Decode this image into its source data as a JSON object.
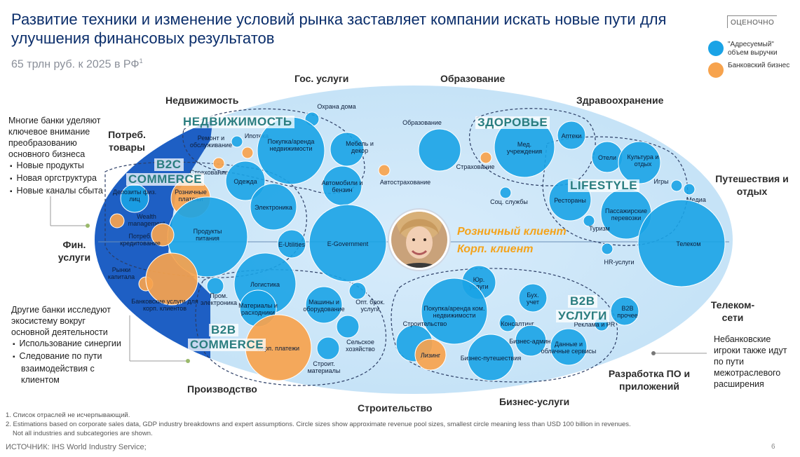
{
  "header": {
    "title": "Развитие техники и изменение условий рынка заставляет компании искать новые пути для улучшения финансовых результатов",
    "subtitle": "65 трлн руб. к 2025 в РФ",
    "subtitle_sup": "1",
    "estimate_label": "ОЦЕНОЧНО"
  },
  "legend": {
    "addressable": "\"Адресуемый\" объем выручки",
    "banking": "Банковский бизнес",
    "colors": {
      "addressable": "#1aa3e6",
      "banking": "#f7a34d"
    }
  },
  "sectors": {
    "gov": "Гос. услуги",
    "education": "Образование",
    "realty": "Недвижимость",
    "health": "Здравоохранение",
    "consumer": "Потреб. товары",
    "travel": "Путешествия и отдых",
    "finance": "Фин. услуги",
    "telecom": "Телеком-сети",
    "manufacturing": "Производство",
    "construction": "Строительство",
    "business": "Бизнес-услуги",
    "software": "Разработка ПО и приложений"
  },
  "side_notes": {
    "top_intro": "Многие банки уделяют ключевое внимание преобразованию основного бизнеса",
    "top_items": [
      "Новые продукты",
      "Новая оргструктура",
      "Новые каналы сбыта"
    ],
    "bottom_intro": "Другие банки исследуют экосистему вокруг основной деятельности",
    "bottom_items": [
      "Использование синергии",
      "Следование по пути взаимодействия с клиентом"
    ],
    "right_note": "Небанковские игроки также идут по пути межотраслевого расширения"
  },
  "clusters": {
    "realty": "НЕДВИЖИМОСТЬ",
    "b2c_1": "B2C",
    "b2c_2": "COMMERCE",
    "health": "ЗДОРОВЬЕ",
    "lifestyle": "LIFESTYLE",
    "b2b_services_1": "B2B",
    "b2b_services_2": "УСЛУГИ",
    "b2b_commerce_1": "B2B",
    "b2b_commerce_2": "COMMERCE"
  },
  "center": {
    "retail_client": "Розничный клиент",
    "corp_client": "Корп. клиент"
  },
  "bubbles": [
    {
      "label": "Охрана дома",
      "kind": "addressable"
    },
    {
      "label": "Ипотека",
      "kind": "addressable"
    },
    {
      "label": "Ремонт и обслуживание",
      "kind": "banking"
    },
    {
      "label": "Покупка/аренда недвижимости",
      "kind": "addressable"
    },
    {
      "label": "Мебель и декор",
      "kind": "addressable"
    },
    {
      "label": "Страхование",
      "kind": "banking"
    },
    {
      "label": "Одежда",
      "kind": "addressable"
    },
    {
      "label": "Автомобили и бензин",
      "kind": "addressable"
    },
    {
      "label": "Автострахование",
      "kind": "banking"
    },
    {
      "label": "Электроника",
      "kind": "addressable"
    },
    {
      "label": "Депозиты физ. лиц",
      "kind": "addressable"
    },
    {
      "label": "Розничные платежи",
      "kind": "banking"
    },
    {
      "label": "Wealth management",
      "kind": "banking"
    },
    {
      "label": "Продукты питания",
      "kind": "addressable"
    },
    {
      "label": "Потреб. кредитование",
      "kind": "banking"
    },
    {
      "label": "E-Utilities",
      "kind": "addressable"
    },
    {
      "label": "E-Government",
      "kind": "addressable"
    },
    {
      "label": "Рынки капитала",
      "kind": "banking"
    },
    {
      "label": "Банковские услуги для корп. клиентов",
      "kind": "banking"
    },
    {
      "label": "Логистика",
      "kind": "addressable"
    },
    {
      "label": "Пром. электроника",
      "kind": "addressable"
    },
    {
      "label": "Материалы и расходники",
      "kind": "addressable"
    },
    {
      "label": "Машины и оборудование",
      "kind": "addressable"
    },
    {
      "label": "Опт. брок. услуги",
      "kind": "addressable"
    },
    {
      "label": "Сельское хозяйство",
      "kind": "addressable"
    },
    {
      "label": "Корп. платежи",
      "kind": "banking"
    },
    {
      "label": "Строит. материалы",
      "kind": "addressable"
    },
    {
      "label": "Образование",
      "kind": "addressable"
    },
    {
      "label": "Страхование",
      "kind": "banking"
    },
    {
      "label": "Мед. учреждения",
      "kind": "addressable"
    },
    {
      "label": "Аптеки",
      "kind": "addressable"
    },
    {
      "label": "Соц. службы",
      "kind": "addressable"
    },
    {
      "label": "Отели",
      "kind": "addressable"
    },
    {
      "label": "Культура и отдых",
      "kind": "addressable"
    },
    {
      "label": "Игры",
      "kind": "addressable"
    },
    {
      "label": "Рестораны",
      "kind": "addressable"
    },
    {
      "label": "Пассажирские перевозки",
      "kind": "addressable"
    },
    {
      "label": "Туризм",
      "kind": "addressable"
    },
    {
      "label": "Медиа",
      "kind": "addressable"
    },
    {
      "label": "Телеком",
      "kind": "addressable"
    },
    {
      "label": "HR-услуги",
      "kind": "addressable"
    },
    {
      "label": "Юр. услуги",
      "kind": "addressable"
    },
    {
      "label": "Бух. учет",
      "kind": "addressable"
    },
    {
      "label": "Покупка/аренда ком. недвижимости",
      "kind": "addressable"
    },
    {
      "label": "Консалтинг",
      "kind": "addressable"
    },
    {
      "label": "Строительство",
      "kind": "addressable"
    },
    {
      "label": "Лизинг",
      "kind": "banking"
    },
    {
      "label": "Бизнес-путешествия",
      "kind": "addressable"
    },
    {
      "label": "Бизнес-админ.",
      "kind": "addressable"
    },
    {
      "label": "Данные и облачные сервисы",
      "kind": "addressable"
    },
    {
      "label": "B2B прочее",
      "kind": "addressable"
    },
    {
      "label": "Реклама и PR",
      "kind": "addressable"
    }
  ],
  "footnotes": {
    "note1": "1. Список отраслей не исчерпывающий.",
    "note2": "2. Estimations based on corporate sales data, GDP industry breakdowns and expert assumptions. Circle sizes show approximate revenue pool sizes, smallest circle meaning less than USD 100 billion in revenues.",
    "note2b": "Not all industries and subcategories are shown.",
    "source": "ИСТОЧНИК: IHS World Industry Service;",
    "page": "6"
  }
}
